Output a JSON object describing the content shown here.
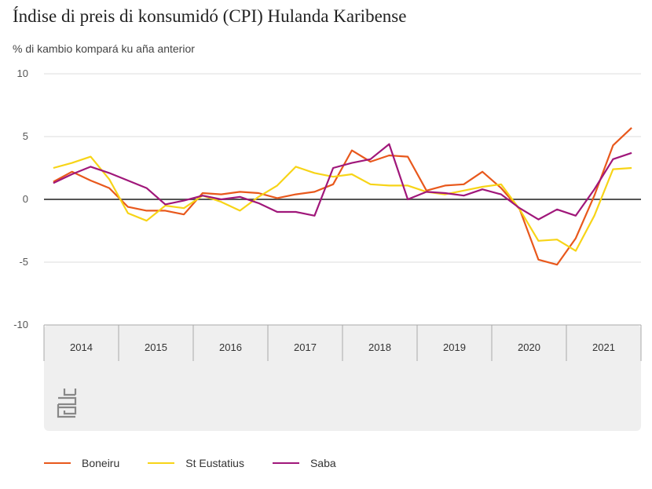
{
  "title": "Índise di preis di konsumidó (CPI) Hulanda Karibense",
  "subtitle": "% di kambio kompará ku aña anterior",
  "colors": {
    "Boneiru": "#e8581c",
    "St Eustatius": "#f7d417",
    "Saba": "#a0177a",
    "zero_line": "#555555",
    "grid": "#dcdcdc",
    "footer_bg": "#efefef"
  },
  "logo": {
    "icon": "cbs-logo-icon"
  },
  "chart_data": {
    "type": "line",
    "title": "Índise di preis di konsumidó (CPI) Hulanda Karibense",
    "ylabel": "% di kambio kompará ku aña anterior",
    "ylim": [
      -10,
      10
    ],
    "yticks": [
      "10",
      "5",
      "0",
      "-5",
      "-10"
    ],
    "x_years": [
      "2014",
      "2015",
      "2016",
      "2017",
      "2018",
      "2019",
      "2020",
      "2021"
    ],
    "x": [
      "2014Q1",
      "2014Q2",
      "2014Q3",
      "2014Q4",
      "2015Q1",
      "2015Q2",
      "2015Q3",
      "2015Q4",
      "2016Q1",
      "2016Q2",
      "2016Q3",
      "2016Q4",
      "2017Q1",
      "2017Q2",
      "2017Q3",
      "2017Q4",
      "2018Q1",
      "2018Q2",
      "2018Q3",
      "2018Q4",
      "2019Q1",
      "2019Q2",
      "2019Q3",
      "2019Q4",
      "2020Q1",
      "2020Q2",
      "2020Q3",
      "2020Q4",
      "2021Q1",
      "2021Q2",
      "2021Q3",
      "2021Q4"
    ],
    "legend_position": "bottom",
    "series": [
      {
        "name": "Boneiru",
        "values": [
          1.4,
          2.2,
          1.5,
          0.9,
          -0.6,
          -0.9,
          -0.9,
          -1.2,
          0.5,
          0.4,
          0.6,
          0.5,
          0.1,
          0.4,
          0.6,
          1.2,
          3.9,
          3.0,
          3.5,
          3.4,
          0.7,
          1.1,
          1.2,
          2.2,
          0.9,
          -0.8,
          -4.8,
          -5.2,
          -3.1,
          0.3,
          4.3,
          5.7
        ]
      },
      {
        "name": "St Eustatius",
        "values": [
          2.5,
          2.9,
          3.4,
          1.6,
          -1.1,
          -1.7,
          -0.5,
          -0.7,
          0.3,
          -0.2,
          -0.9,
          0.2,
          1.1,
          2.6,
          2.1,
          1.8,
          2.0,
          1.2,
          1.1,
          1.1,
          0.6,
          0.4,
          0.7,
          1.0,
          1.2,
          -0.8,
          -3.3,
          -3.2,
          -4.1,
          -1.3,
          2.4,
          2.5
        ]
      },
      {
        "name": "Saba",
        "values": [
          1.3,
          2.0,
          2.6,
          2.1,
          1.5,
          0.9,
          -0.4,
          -0.1,
          0.3,
          0.0,
          0.2,
          -0.3,
          -1.0,
          -1.0,
          -1.3,
          2.5,
          2.9,
          3.2,
          4.4,
          0.0,
          0.6,
          0.5,
          0.3,
          0.8,
          0.4,
          -0.7,
          -1.6,
          -0.8,
          -1.3,
          0.8,
          3.2,
          3.7
        ]
      }
    ]
  }
}
